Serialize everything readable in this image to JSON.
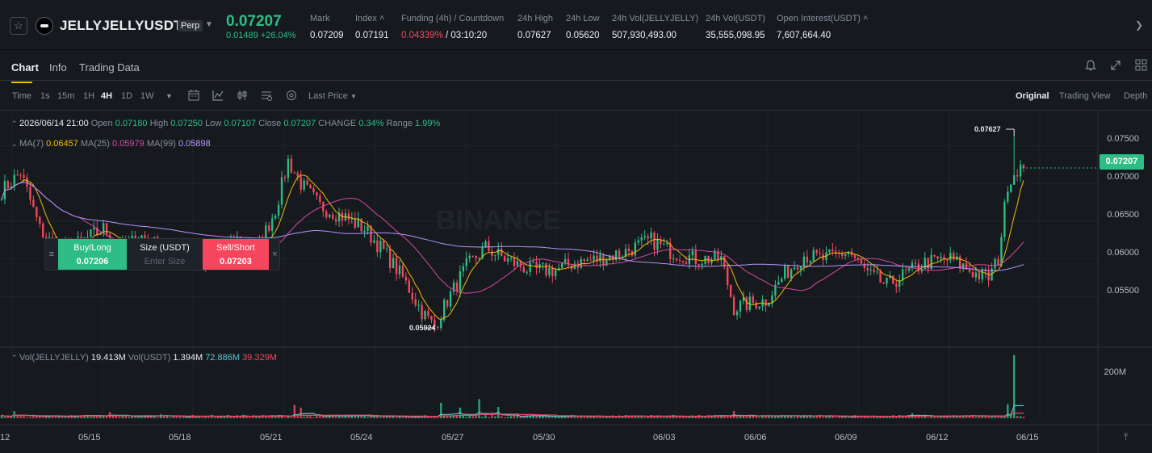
{
  "header": {
    "star_glyph": "☆",
    "symbol": "JELLYJELLYUSDT",
    "contract_type": "Perp",
    "last_price": "0.07207",
    "change": "0.01489 +26.04%",
    "stats": [
      {
        "label": "Mark",
        "value": "0.07209"
      },
      {
        "label": "Index ˄",
        "value": "0.07191"
      },
      {
        "label": "Funding (4h) / Countdown",
        "value_red": "0.04339%",
        "value": " / 03:10:20"
      },
      {
        "label": "24h High",
        "value": "0.07627"
      },
      {
        "label": "24h Low",
        "value": "0.05620"
      },
      {
        "label": "24h Vol(JELLYJELLY)",
        "value": "507,930,493.00"
      },
      {
        "label": "24h Vol(USDT)",
        "value": "35,555,098.95"
      },
      {
        "label": "Open Interest(USDT) ˄",
        "value": "7,607,664.40"
      }
    ]
  },
  "tabs": [
    {
      "label": "Chart"
    },
    {
      "label": "Info"
    },
    {
      "label": "Trading Data"
    }
  ],
  "toolbar": {
    "intervals": [
      "Time",
      "1s",
      "15m",
      "1H",
      "4H",
      "1D",
      "1W"
    ],
    "active_interval": "4H",
    "price_source": "Last Price",
    "views": [
      "Original",
      "Trading View",
      "Depth"
    ],
    "active_view": "Original"
  },
  "legend": {
    "ohlc": {
      "date": "2026/06/14 21:00",
      "open_label": "Open",
      "open": "0.07180",
      "high_label": "High",
      "high": "0.07250",
      "low_label": "Low",
      "low": "0.07107",
      "close_label": "Close",
      "close": "0.07207",
      "change_label": "CHANGE",
      "change": "0.34%",
      "range_label": "Range",
      "range": "1.99%"
    },
    "ma": [
      {
        "label": "MA(7)",
        "value": "0.06457",
        "color": "#f0b90b"
      },
      {
        "label": "MA(25)",
        "value": "0.05979",
        "color": "#d548a4"
      },
      {
        "label": "MA(99)",
        "value": "0.05898",
        "color": "#b493ff"
      }
    ],
    "volume": {
      "vol_label": "Vol(JELLYJELLY)",
      "vol_value": "19.413M",
      "usdt_label": "Vol(USDT)",
      "usdt_value": "1.394M",
      "ma1_value": "72.886M",
      "ma2_value": "39.329M"
    }
  },
  "order_panel": {
    "buy_label": "Buy/Long",
    "buy_price": "0.07206",
    "size_label": "Size (USDT)",
    "size_placeholder": "Enter Size",
    "sell_label": "Sell/Short",
    "sell_price": "0.07203"
  },
  "current_price_tag": "0.07207",
  "extremes": {
    "high": "0.07627",
    "low": "0.05024"
  },
  "watermark": "BINANCE",
  "colors": {
    "up": "#2ebd85",
    "down": "#f6465d",
    "ma7": "#f0b90b",
    "ma25": "#d548a4",
    "ma99": "#b493ff",
    "accent": "#f0b90b"
  },
  "chart_data": {
    "type": "candlestick",
    "price_axis_ticks": [
      "0.07500",
      "0.07000",
      "0.06500",
      "0.06000",
      "0.05500"
    ],
    "price_ticks_values": [
      0.075,
      0.07,
      0.065,
      0.06,
      0.055
    ],
    "volume_axis_ticks": [
      "200M"
    ],
    "date_labels": [
      "12",
      "05/15",
      "05/18",
      "05/21",
      "05/24",
      "05/27",
      "05/30",
      "06/03",
      "06/06",
      "06/09",
      "06/12",
      "06/15"
    ],
    "anchors": [
      [
        0,
        0.069
      ],
      [
        6,
        0.0715
      ],
      [
        12,
        0.064
      ],
      [
        18,
        0.0608
      ],
      [
        24,
        0.062
      ],
      [
        32,
        0.064
      ],
      [
        38,
        0.0615
      ],
      [
        44,
        0.063
      ],
      [
        50,
        0.0615
      ],
      [
        56,
        0.0598
      ],
      [
        62,
        0.0597
      ],
      [
        68,
        0.0596
      ],
      [
        74,
        0.0625
      ],
      [
        80,
        0.061
      ],
      [
        86,
        0.0665
      ],
      [
        90,
        0.073
      ],
      [
        94,
        0.07
      ],
      [
        100,
        0.067
      ],
      [
        108,
        0.0655
      ],
      [
        114,
        0.064
      ],
      [
        120,
        0.061
      ],
      [
        126,
        0.0575
      ],
      [
        132,
        0.053
      ],
      [
        136,
        0.051
      ],
      [
        140,
        0.0545
      ],
      [
        146,
        0.059
      ],
      [
        152,
        0.0615
      ],
      [
        158,
        0.06
      ],
      [
        166,
        0.0585
      ],
      [
        174,
        0.0585
      ],
      [
        180,
        0.0595
      ],
      [
        188,
        0.06
      ],
      [
        196,
        0.061
      ],
      [
        204,
        0.0625
      ],
      [
        210,
        0.061
      ],
      [
        218,
        0.06
      ],
      [
        226,
        0.06
      ],
      [
        230,
        0.0535
      ],
      [
        234,
        0.054
      ],
      [
        240,
        0.0545
      ],
      [
        246,
        0.058
      ],
      [
        252,
        0.0605
      ],
      [
        258,
        0.06
      ],
      [
        266,
        0.061
      ],
      [
        272,
        0.058
      ],
      [
        278,
        0.0565
      ],
      [
        284,
        0.058
      ],
      [
        290,
        0.0595
      ],
      [
        298,
        0.06
      ],
      [
        306,
        0.058
      ],
      [
        310,
        0.0575
      ],
      [
        313,
        0.06
      ],
      [
        316,
        0.07
      ],
      [
        319,
        0.072
      ],
      [
        320,
        0.0721
      ]
    ],
    "volume_spikes": [
      [
        4,
        25
      ],
      [
        34,
        22
      ],
      [
        50,
        14
      ],
      [
        92,
        48
      ],
      [
        94,
        38
      ],
      [
        138,
        55
      ],
      [
        144,
        38
      ],
      [
        150,
        68
      ],
      [
        156,
        40
      ],
      [
        230,
        26
      ],
      [
        286,
        18
      ],
      [
        316,
        50
      ],
      [
        318,
        225
      ],
      [
        320,
        8
      ]
    ],
    "ylim": [
      0.0485,
      0.0785
    ],
    "volume_max": 230
  }
}
